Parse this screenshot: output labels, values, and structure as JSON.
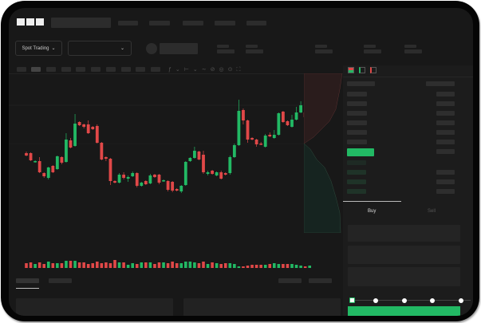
{
  "brand": {
    "logo": "OKX"
  },
  "header": {
    "market_selector": "Spot Trading",
    "pair_selector_icon": "chevron-down-icon"
  },
  "trade_panel": {
    "buy_tab": "Buy",
    "sell_tab": "Sell",
    "active_tab": "Buy",
    "amount_slider_percent": 0
  },
  "colors": {
    "up": "#22b964",
    "down": "#e04848",
    "background": "#181818",
    "accent": "#22b964"
  },
  "chart_data": {
    "type": "candlestick",
    "fields": [
      "open",
      "close",
      "high",
      "low"
    ],
    "candles": [
      [
        68,
        65,
        70,
        64
      ],
      [
        68,
        59,
        69,
        58
      ],
      [
        57,
        58,
        59,
        56
      ],
      [
        58,
        44,
        63,
        43
      ],
      [
        43,
        39,
        44,
        37
      ],
      [
        37,
        50,
        51,
        35
      ],
      [
        52,
        44,
        53,
        43
      ],
      [
        48,
        64,
        65,
        47
      ],
      [
        63,
        56,
        64,
        54
      ],
      [
        57,
        85,
        93,
        56
      ],
      [
        84,
        75,
        87,
        74
      ],
      [
        77,
        105,
        117,
        76
      ],
      [
        107,
        103,
        108,
        102
      ],
      [
        104,
        101,
        105,
        99
      ],
      [
        104,
        93,
        109,
        92
      ],
      [
        101,
        98,
        102,
        97
      ],
      [
        102,
        81,
        104,
        80
      ],
      [
        81,
        60,
        82,
        59
      ],
      [
        63,
        61,
        64,
        58
      ],
      [
        61,
        33,
        62,
        28
      ],
      [
        33,
        31,
        34,
        30
      ],
      [
        31,
        41,
        43,
        30
      ],
      [
        41,
        37,
        44,
        35
      ],
      [
        36,
        38,
        40,
        32
      ],
      [
        39,
        43,
        45,
        38
      ],
      [
        43,
        27,
        44,
        25
      ],
      [
        27,
        31,
        32,
        26
      ],
      [
        33,
        29,
        34,
        28
      ],
      [
        30,
        40,
        42,
        29
      ],
      [
        41,
        38,
        42,
        37
      ],
      [
        41,
        31,
        42,
        29
      ],
      [
        33,
        34,
        35,
        32
      ],
      [
        33,
        22,
        34,
        20
      ],
      [
        32,
        21,
        33,
        19
      ],
      [
        23,
        21,
        24,
        20
      ],
      [
        20,
        27,
        28,
        18
      ],
      [
        28,
        57,
        58,
        27
      ],
      [
        58,
        62,
        63,
        57
      ],
      [
        62,
        71,
        76,
        61
      ],
      [
        70,
        60,
        71,
        59
      ],
      [
        66,
        44,
        71,
        42
      ],
      [
        42,
        44,
        46,
        40
      ],
      [
        46,
        42,
        47,
        41
      ],
      [
        40,
        44,
        45,
        39
      ],
      [
        44,
        36,
        46,
        35
      ],
      [
        43,
        41,
        44,
        40
      ],
      [
        43,
        63,
        65,
        41
      ],
      [
        63,
        78,
        80,
        62
      ],
      [
        78,
        121,
        135,
        77
      ],
      [
        122,
        109,
        124,
        104
      ],
      [
        109,
        85,
        110,
        81
      ],
      [
        87,
        85,
        88,
        84
      ],
      [
        85,
        79,
        86,
        76
      ],
      [
        80,
        79,
        82,
        78
      ],
      [
        76,
        90,
        92,
        75
      ],
      [
        91,
        89,
        94,
        88
      ],
      [
        87,
        91,
        97,
        86
      ],
      [
        91,
        118,
        119,
        90
      ],
      [
        120,
        107,
        121,
        106
      ],
      [
        108,
        103,
        109,
        102
      ],
      [
        101,
        110,
        116,
        100
      ],
      [
        110,
        119,
        126,
        109
      ],
      [
        119,
        128,
        133,
        118
      ],
      [
        119,
        113,
        120,
        110
      ],
      [
        111,
        117,
        122,
        110
      ]
    ],
    "volume": [
      6,
      7,
      5,
      7,
      5,
      8,
      6,
      6,
      6,
      9,
      9,
      9,
      7,
      7,
      5,
      6,
      8,
      6,
      7,
      6,
      10,
      7,
      7,
      4,
      6,
      5,
      7,
      7,
      7,
      5,
      7,
      7,
      6,
      8,
      6,
      6,
      8,
      8,
      7,
      6,
      8,
      5,
      7,
      6,
      5,
      6,
      6,
      5,
      2,
      2,
      3,
      4,
      4,
      4,
      4,
      5,
      6,
      5,
      5,
      5,
      5,
      4,
      3,
      2,
      3
    ]
  }
}
